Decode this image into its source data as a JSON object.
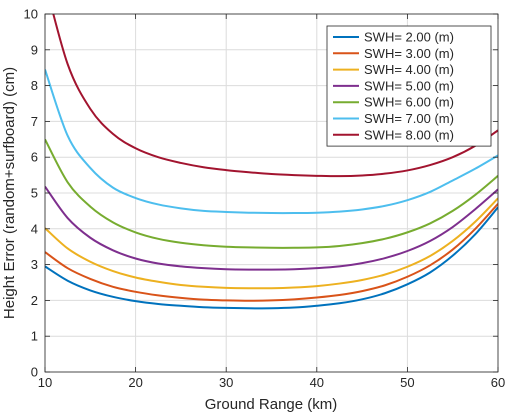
{
  "chart_data": {
    "type": "line",
    "title": "",
    "xlabel": "Ground Range (km)",
    "ylabel": "Height Error (random+surfboard) (cm)",
    "xlim": [
      10,
      60
    ],
    "ylim": [
      0,
      10
    ],
    "xticks": [
      10,
      20,
      30,
      40,
      50,
      60
    ],
    "yticks": [
      0,
      1,
      2,
      3,
      4,
      5,
      6,
      7,
      8,
      9,
      10
    ],
    "grid": true,
    "legend_position": "top-right",
    "x": [
      10,
      12.5,
      15,
      17.5,
      20,
      22.5,
      25,
      27.5,
      30,
      32.5,
      35,
      37.5,
      40,
      42.5,
      45,
      47.5,
      50,
      52.5,
      55,
      57.5,
      60
    ],
    "series": [
      {
        "name": "SWH= 2.00 (m)",
        "color": "#0072BD",
        "values": [
          2.95,
          2.55,
          2.28,
          2.1,
          1.98,
          1.9,
          1.85,
          1.81,
          1.79,
          1.78,
          1.78,
          1.8,
          1.85,
          1.92,
          2.03,
          2.2,
          2.45,
          2.78,
          3.25,
          3.85,
          4.6
        ]
      },
      {
        "name": "SWH= 3.00 (m)",
        "color": "#D95319",
        "values": [
          3.35,
          2.9,
          2.6,
          2.38,
          2.24,
          2.14,
          2.07,
          2.02,
          2.0,
          1.99,
          2.0,
          2.03,
          2.08,
          2.15,
          2.26,
          2.42,
          2.66,
          2.98,
          3.42,
          4.0,
          4.7
        ]
      },
      {
        "name": "SWH= 4.00 (m)",
        "color": "#EDB120",
        "values": [
          4.02,
          3.45,
          3.08,
          2.82,
          2.64,
          2.52,
          2.43,
          2.38,
          2.35,
          2.34,
          2.34,
          2.36,
          2.4,
          2.47,
          2.57,
          2.72,
          2.94,
          3.24,
          3.66,
          4.2,
          4.85
        ]
      },
      {
        "name": "SWH= 5.00 (m)",
        "color": "#7E2F8E",
        "values": [
          5.18,
          4.3,
          3.75,
          3.4,
          3.17,
          3.03,
          2.95,
          2.9,
          2.87,
          2.86,
          2.86,
          2.87,
          2.9,
          2.95,
          3.04,
          3.18,
          3.38,
          3.66,
          4.05,
          4.55,
          5.1
        ]
      },
      {
        "name": "SWH= 6.00 (m)",
        "color": "#77AC30",
        "values": [
          6.5,
          5.3,
          4.62,
          4.18,
          3.9,
          3.72,
          3.61,
          3.54,
          3.5,
          3.48,
          3.47,
          3.47,
          3.48,
          3.52,
          3.6,
          3.72,
          3.9,
          4.15,
          4.5,
          4.95,
          5.48
        ]
      },
      {
        "name": "SWH= 7.00 (m)",
        "color": "#4DBEEE",
        "values": [
          8.45,
          6.6,
          5.7,
          5.15,
          4.86,
          4.68,
          4.57,
          4.5,
          4.47,
          4.45,
          4.44,
          4.44,
          4.45,
          4.48,
          4.54,
          4.64,
          4.8,
          5.03,
          5.35,
          5.68,
          6.05
        ]
      },
      {
        "name": "SWH= 8.00 (m)",
        "color": "#A2142F",
        "values": [
          10.9,
          8.6,
          7.35,
          6.65,
          6.25,
          6.0,
          5.84,
          5.72,
          5.64,
          5.58,
          5.53,
          5.5,
          5.48,
          5.47,
          5.49,
          5.54,
          5.63,
          5.78,
          6.0,
          6.32,
          6.75
        ]
      }
    ]
  }
}
